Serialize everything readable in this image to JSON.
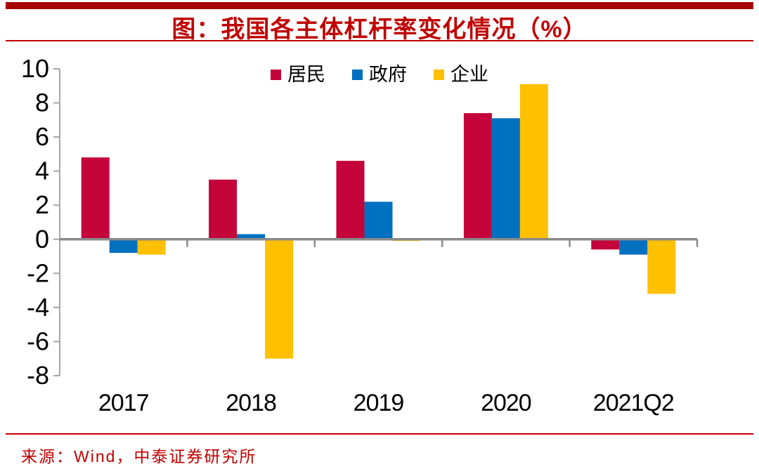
{
  "header": {
    "title": "图：我国各主体杠杆率变化情况（%）"
  },
  "chart_data": {
    "type": "bar",
    "title": "图：我国各主体杠杆率变化情况（%）",
    "categories": [
      "2017",
      "2018",
      "2019",
      "2020",
      "2021Q2"
    ],
    "series": [
      {
        "key": "residents",
        "name": "居民",
        "color": "#C4033B",
        "values": [
          4.8,
          3.5,
          4.6,
          7.4,
          -0.6
        ]
      },
      {
        "key": "government",
        "name": "政府",
        "color": "#0070C0",
        "values": [
          -0.8,
          0.3,
          2.2,
          7.1,
          -0.9
        ]
      },
      {
        "key": "enterprises",
        "name": "企业",
        "color": "#FFC000",
        "values": [
          -0.9,
          -7.0,
          -0.1,
          9.1,
          -3.2
        ]
      }
    ],
    "xlabel": "",
    "ylabel": "",
    "ylim": [
      -8,
      10
    ],
    "ytick_step": 2,
    "ytick_labels": [
      "-8",
      "-6",
      "-4",
      "-2",
      "0",
      "2",
      "4",
      "6",
      "8",
      "10"
    ],
    "grid": false,
    "legend_position": "top-center"
  },
  "colors": {
    "accent_bar": "#A80000",
    "title_red": "#C00000",
    "rule_red": "#C00000",
    "axis_gray": "#A6A6A6",
    "zero_line_gray": "#8A8A8A",
    "tick_label": "#000000"
  },
  "footer": {
    "source": "来源：Wind，中泰证券研究所"
  }
}
